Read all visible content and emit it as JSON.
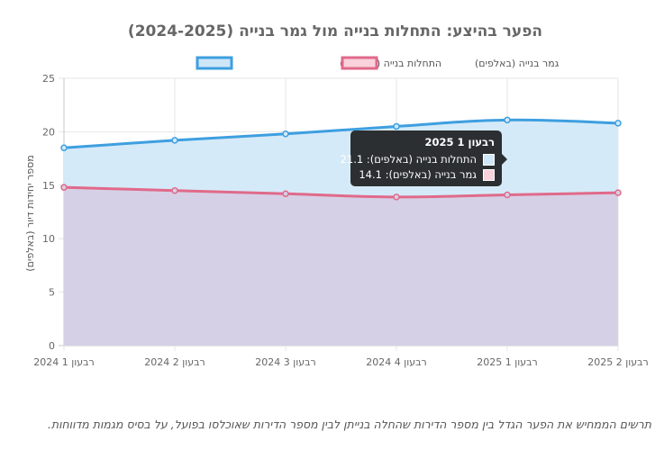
{
  "chart_data": {
    "type": "line",
    "title": "הפער בהיצע: התחלות בנייה מול גמר בנייה (2024-2025)",
    "ylabel": "מספר יחידות דיור (באלפים)",
    "xlabel": "",
    "categories": [
      "רבעון 1 2024",
      "רבעון 2 2024",
      "רבעון 3 2024",
      "רבעון 4 2024",
      "רבעון 1 2025",
      "רבעון 2 2025"
    ],
    "ylim": [
      0,
      25
    ],
    "yticks": [
      0,
      5,
      10,
      15,
      20,
      25
    ],
    "grid": true,
    "legend_position": "top",
    "area_fill": true,
    "series": [
      {
        "name": "התחלות בנייה (באלפים)",
        "values": [
          18.5,
          19.2,
          19.8,
          20.5,
          21.1,
          20.8
        ],
        "color": "#3e9fe0",
        "fill": "#d3e9f8"
      },
      {
        "name": "גמר בנייה (באלפים)",
        "values": [
          14.8,
          14.5,
          14.2,
          13.9,
          14.1,
          14.3
        ],
        "color": "#e06a8a",
        "fill": "#d6d0e6"
      }
    ]
  },
  "tooltip": {
    "title": "רבעון 1 2025",
    "rows": [
      {
        "label": "התחלות בנייה (באלפים): 21.1",
        "color": "#cfe6f7"
      },
      {
        "label": "גמר בנייה (באלפים): 14.1",
        "color": "#f9d2dc"
      }
    ]
  },
  "caption": "תרשים הממחיש את הפער הגדל בין מספר הדירות שהחלה בנייתן לבין מספר הדירות שאוכלסו בפועל, על בסיס מגמות מדווחות."
}
